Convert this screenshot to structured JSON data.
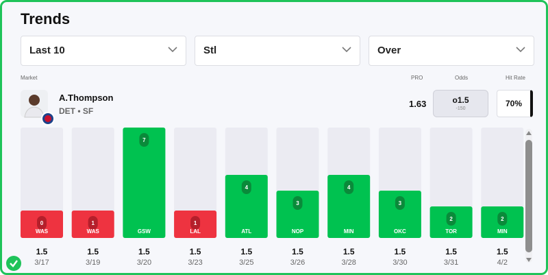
{
  "header": {
    "title": "Trends"
  },
  "filters": [
    "Last 10",
    "Stl",
    "Over"
  ],
  "columns": {
    "market": "Market",
    "pro": "PRO",
    "odds": "Odds",
    "hit_rate": "Hit Rate"
  },
  "player": {
    "name": "A.Thompson",
    "team": "DET • SF",
    "pro": "1.63",
    "odds_line": "o1.5",
    "odds_price": "-150",
    "hit_rate": "70%"
  },
  "chart_data": {
    "type": "bar",
    "categories": [
      "WAS",
      "WAS",
      "GSW",
      "LAL",
      "ATL",
      "NOP",
      "MIN",
      "OKC",
      "TOR",
      "MIN"
    ],
    "values": [
      0,
      1,
      7,
      1,
      4,
      3,
      4,
      3,
      2,
      2
    ],
    "lines": [
      1.5,
      1.5,
      1.5,
      1.5,
      1.5,
      1.5,
      1.5,
      1.5,
      1.5,
      1.5
    ],
    "dates": [
      "3/17",
      "3/19",
      "3/20",
      "3/23",
      "3/25",
      "3/26",
      "3/28",
      "3/30",
      "3/31",
      "4/2"
    ],
    "over_color": "#00c250",
    "under_color": "#ee3340"
  }
}
